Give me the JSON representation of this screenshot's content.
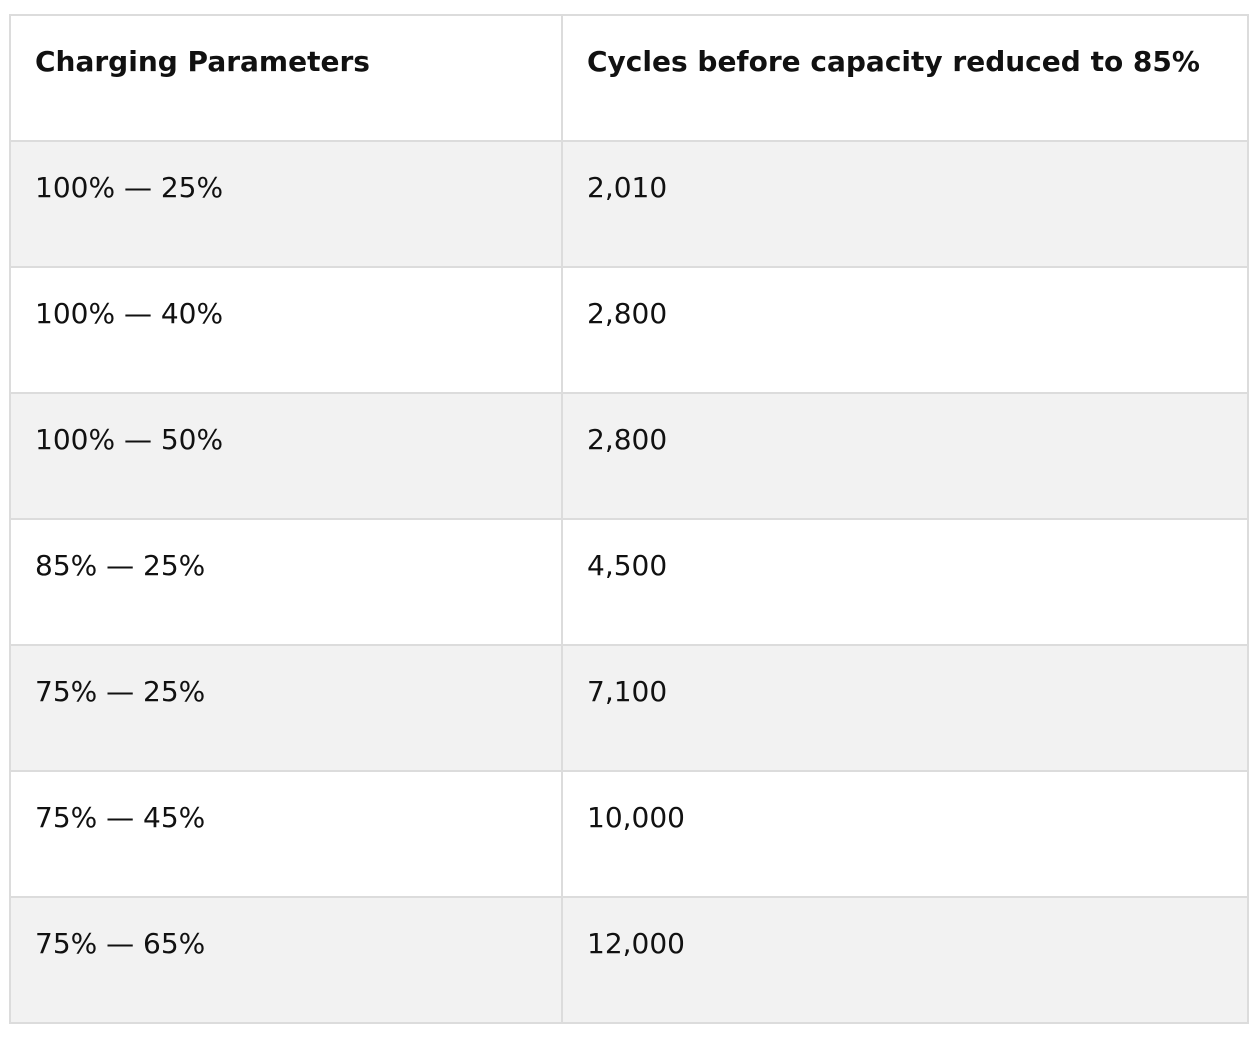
{
  "table": {
    "headers": [
      "Charging Parameters",
      "Cycles before capacity reduced to 85%"
    ],
    "rows": [
      [
        "100% — 25%",
        "2,010"
      ],
      [
        "100% — 40%",
        "2,800"
      ],
      [
        "100% — 50%",
        "2,800"
      ],
      [
        "85% — 25%",
        "4,500"
      ],
      [
        "75% — 25%",
        "7,100"
      ],
      [
        "75% — 45%",
        "10,000"
      ],
      [
        "75% — 65%",
        "12,000"
      ]
    ]
  },
  "colors": {
    "border": "#dcdcdc",
    "stripe": "#f2f2f2",
    "background": "#ffffff",
    "text": "#111111"
  }
}
